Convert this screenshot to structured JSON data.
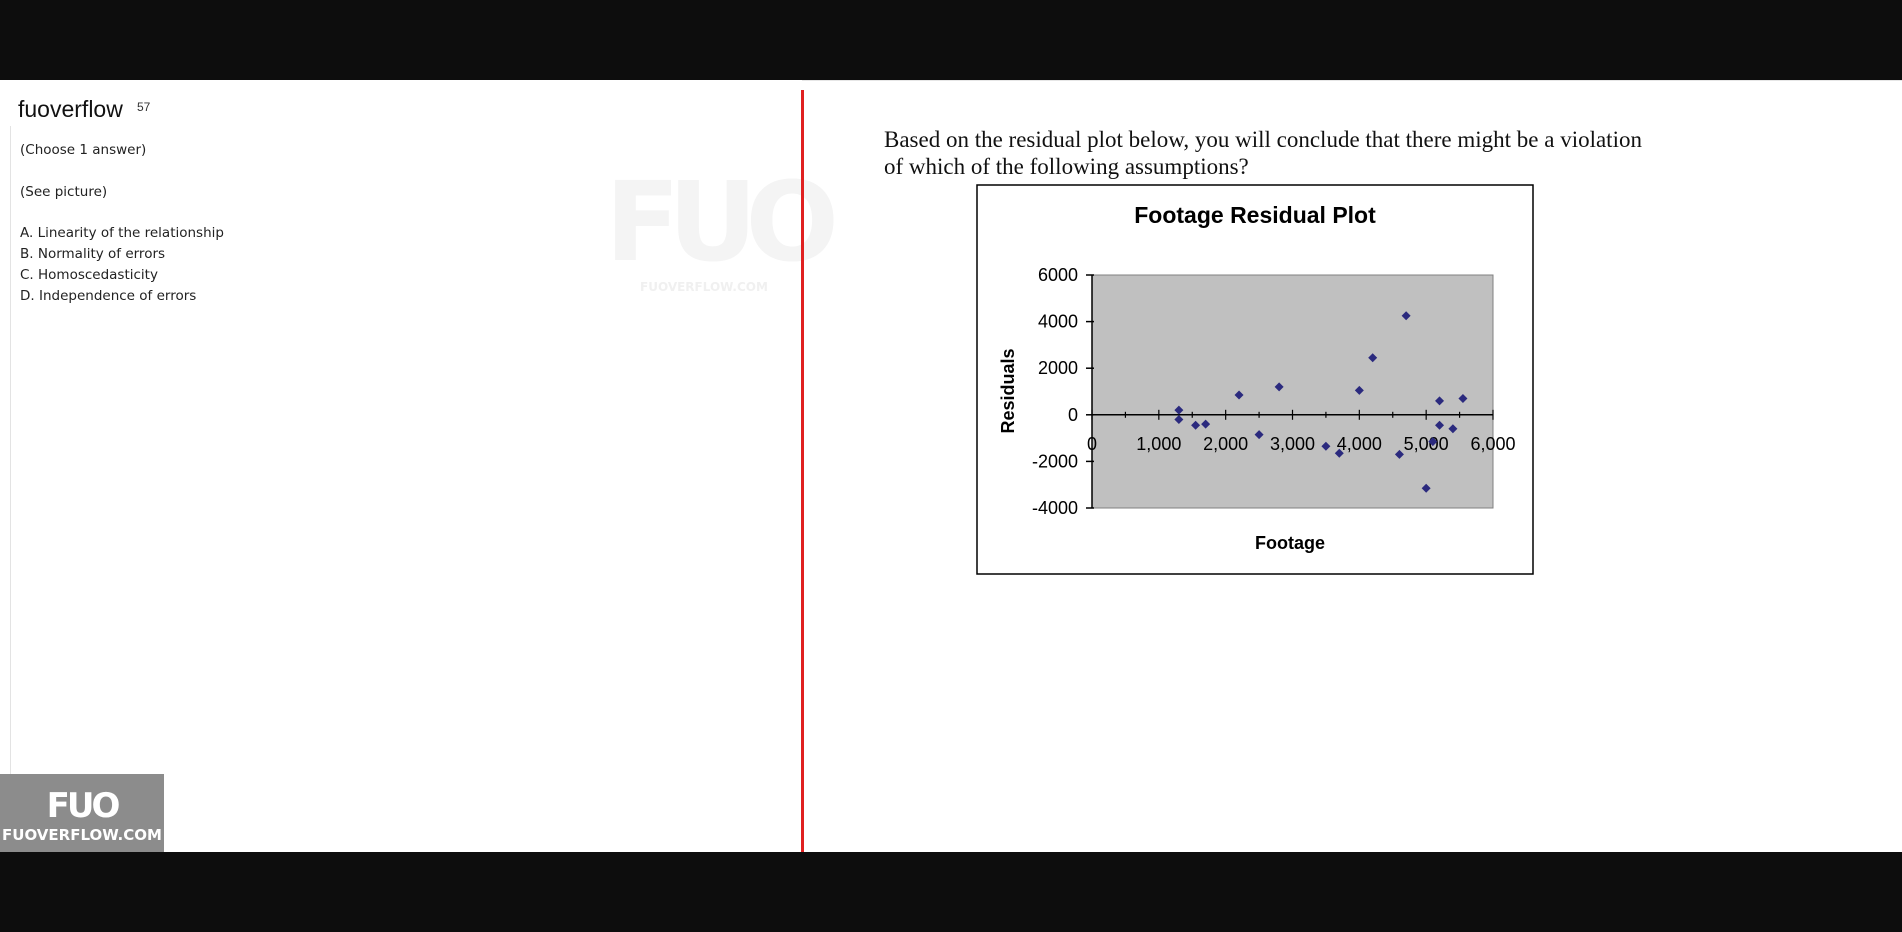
{
  "site": {
    "title": "fuoverflow",
    "counter": "57"
  },
  "question_meta": {
    "choose": "(Choose 1 answer)",
    "see_picture": "(See picture)"
  },
  "options": [
    "A. Linearity of the relationship",
    "B. Normality of errors",
    "C. Homoscedasticity",
    "D. Independence of errors"
  ],
  "watermark": {
    "logo": "FUO",
    "url": "FUOVERFLOW.COM"
  },
  "question_text": "Based on the residual plot below, you will conclude that there might be a violation of which of the following assumptions?",
  "colors": {
    "divider": "#e02020",
    "plot_area": "#c0c0c0",
    "marker": "#2b2a7e"
  },
  "chart_data": {
    "type": "scatter",
    "title": "Footage  Residual Plot",
    "xlabel": "Footage",
    "ylabel": "Residuals",
    "xlim": [
      0,
      6000
    ],
    "ylim": [
      -4000,
      6000
    ],
    "x_ticks": [
      "0",
      "1,000",
      "2,000",
      "3,000",
      "4,000",
      "5,000",
      "6,000"
    ],
    "y_ticks": [
      "6000",
      "4000",
      "2000",
      "0",
      "-2000",
      "-4000"
    ],
    "grid": false,
    "legend": "none",
    "series": [
      {
        "points": [
          {
            "x": 1300,
            "y": 200
          },
          {
            "x": 1300,
            "y": -200
          },
          {
            "x": 1550,
            "y": -450
          },
          {
            "x": 1700,
            "y": -400
          },
          {
            "x": 2200,
            "y": 850
          },
          {
            "x": 2500,
            "y": -850
          },
          {
            "x": 2800,
            "y": 1200
          },
          {
            "x": 3500,
            "y": -1350
          },
          {
            "x": 3700,
            "y": -1650
          },
          {
            "x": 4000,
            "y": 1050
          },
          {
            "x": 4200,
            "y": 2450
          },
          {
            "x": 4600,
            "y": -1700
          },
          {
            "x": 4700,
            "y": 4250
          },
          {
            "x": 5000,
            "y": -3150
          },
          {
            "x": 5100,
            "y": -1150
          },
          {
            "x": 5200,
            "y": 600
          },
          {
            "x": 5200,
            "y": -450
          },
          {
            "x": 5400,
            "y": -600
          },
          {
            "x": 5550,
            "y": 700
          }
        ]
      }
    ]
  }
}
